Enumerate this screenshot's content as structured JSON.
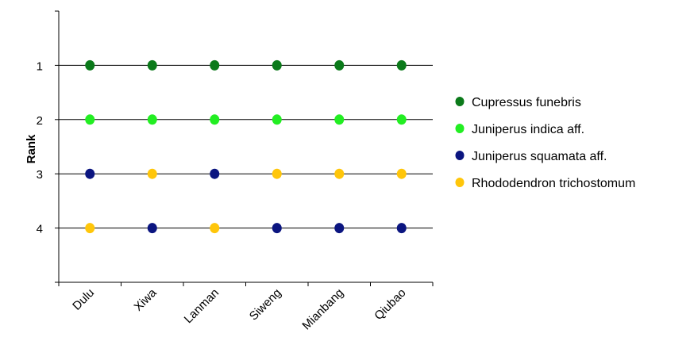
{
  "chart_data": {
    "type": "scatter",
    "title": "",
    "xlabel": "",
    "ylabel": "Rank",
    "categories": [
      "Dulu",
      "Xiwa",
      "Lanman",
      "Siweng",
      "Mianbang",
      "Qiubao"
    ],
    "y_ticks": [
      "1",
      "2",
      "3",
      "4"
    ],
    "ylim": [
      0,
      5
    ],
    "y_inverted": true,
    "grid": "horizontal",
    "legend_position": "right",
    "series": [
      {
        "name": "Cupressus funebris",
        "color": "#0b7a1a",
        "values": [
          1,
          1,
          1,
          1,
          1,
          1
        ]
      },
      {
        "name": "Juniperus indica aff.",
        "color": "#22ee22",
        "values": [
          2,
          2,
          2,
          2,
          2,
          2
        ]
      },
      {
        "name": "Juniperus squamata aff.",
        "color": "#0b1580",
        "values": [
          3,
          4,
          3,
          4,
          4,
          4
        ]
      },
      {
        "name": "Rhododendron trichostomum",
        "color": "#ffc60a",
        "values": [
          4,
          3,
          4,
          3,
          3,
          3
        ]
      }
    ]
  }
}
